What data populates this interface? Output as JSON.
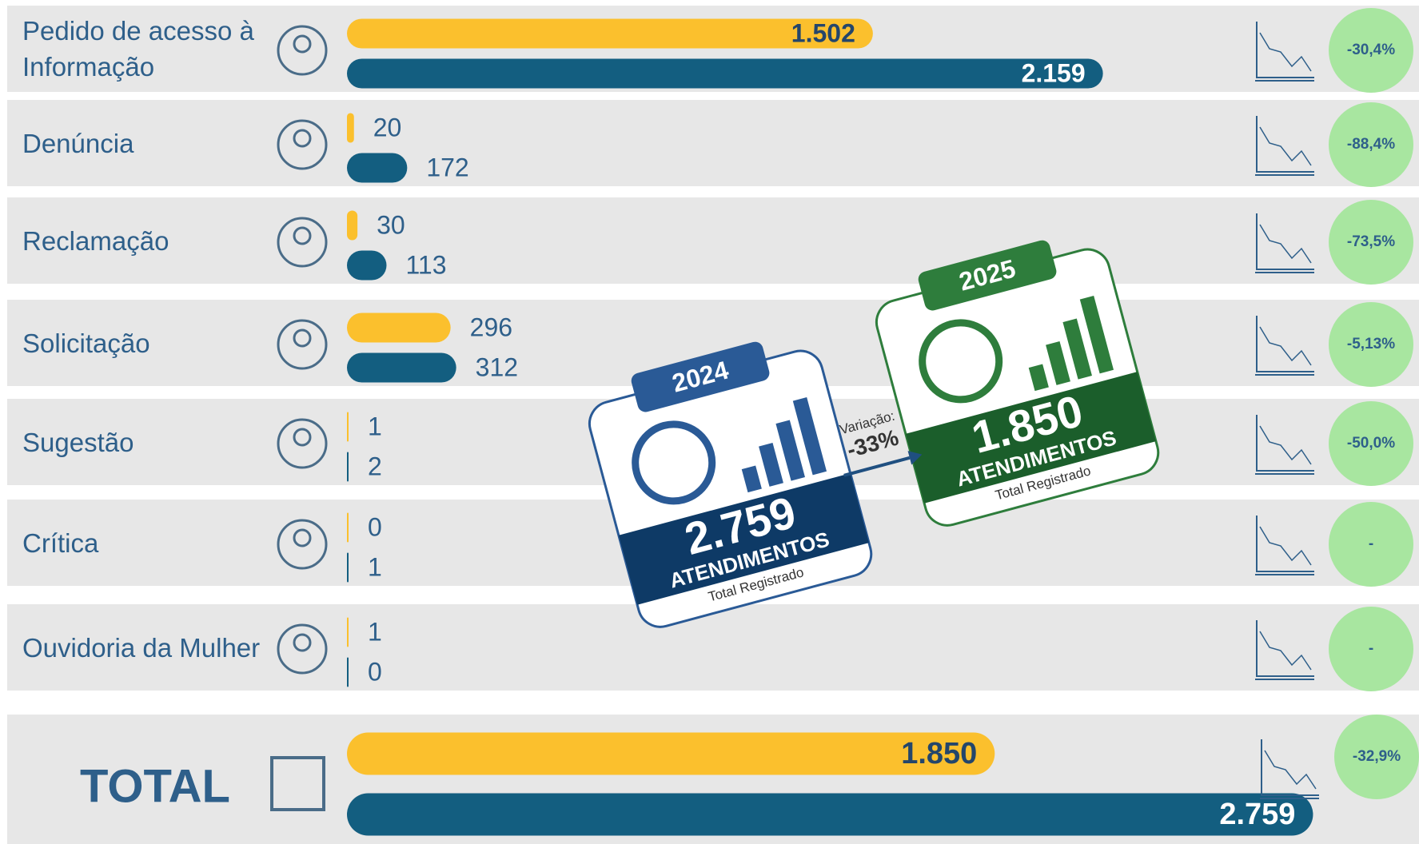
{
  "chart_data": {
    "type": "bar",
    "categories": [
      "Pedido de acesso à Informação",
      "Denúncia",
      "Reclamação",
      "Solicitação",
      "Sugestão",
      "Crítica",
      "Ouvidoria da Mulher"
    ],
    "series": [
      {
        "name": "2025",
        "color": "#fbc02d",
        "values": [
          1502,
          20,
          30,
          296,
          1,
          0,
          1
        ],
        "value_labels": [
          "1.502",
          "20",
          "30",
          "296",
          "1",
          "0",
          "1"
        ]
      },
      {
        "name": "2024",
        "color": "#135e80",
        "values": [
          2159,
          172,
          113,
          312,
          2,
          1,
          0
        ],
        "value_labels": [
          "2.159",
          "172",
          "113",
          "312",
          "2",
          "1",
          "0"
        ]
      }
    ],
    "change_labels": [
      "-30,4%",
      "-88,4%",
      "-73,5%",
      "-5,13%",
      "-50,0%",
      "-",
      "-"
    ],
    "total": {
      "label": "TOTAL",
      "values": [
        1850,
        2759
      ],
      "value_labels": [
        "1.850",
        "2.759"
      ],
      "change_label": "-32,9%"
    },
    "badge": {
      "unit": "ATENDIMENTOS",
      "caption": "Total Registrado",
      "variation_label": "Variação:",
      "variation": "-33%"
    }
  }
}
